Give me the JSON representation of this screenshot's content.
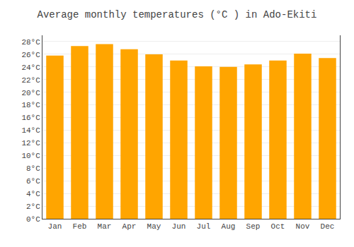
{
  "chart_data": {
    "type": "bar",
    "title": "Average monthly temperatures (°C ) in Ado-Ekiti",
    "categories": [
      "Jan",
      "Feb",
      "Mar",
      "Apr",
      "May",
      "Jun",
      "Jul",
      "Aug",
      "Sep",
      "Oct",
      "Nov",
      "Dec"
    ],
    "values": [
      25.8,
      27.3,
      27.6,
      26.8,
      26.0,
      25.0,
      24.1,
      24.0,
      24.4,
      25.0,
      26.1,
      25.4
    ],
    "color": "#FFA500",
    "ylim": [
      0,
      29
    ],
    "yticks": [
      {
        "value": 0,
        "label": "0°C"
      },
      {
        "value": 2,
        "label": "2°C"
      },
      {
        "value": 4,
        "label": "4°C"
      },
      {
        "value": 6,
        "label": "6°C"
      },
      {
        "value": 8,
        "label": "8°C"
      },
      {
        "value": 10,
        "label": "10°C"
      },
      {
        "value": 12,
        "label": "12°C"
      },
      {
        "value": 14,
        "label": "14°C"
      },
      {
        "value": 16,
        "label": "16°C"
      },
      {
        "value": 18,
        "label": "18°C"
      },
      {
        "value": 20,
        "label": "20°C"
      },
      {
        "value": 22,
        "label": "22°C"
      },
      {
        "value": 24,
        "label": "24°C"
      },
      {
        "value": 26,
        "label": "26°C"
      },
      {
        "value": 28,
        "label": "28°C"
      }
    ],
    "grid": true
  }
}
